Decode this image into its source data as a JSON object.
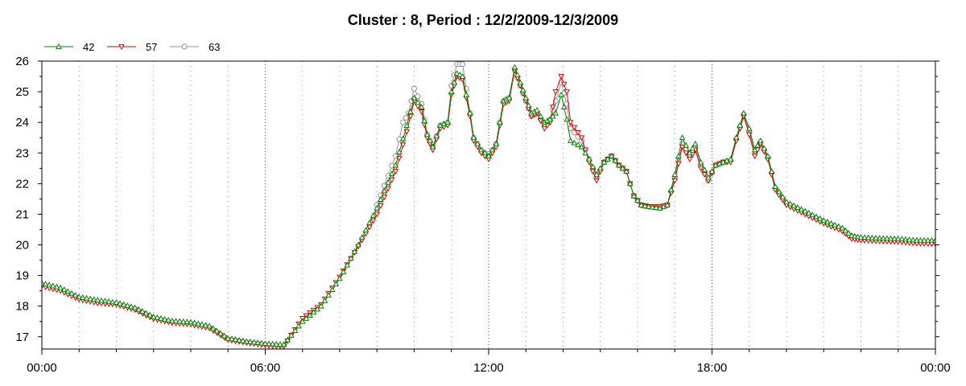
{
  "chart_data": {
    "type": "line",
    "title": "Cluster : 8, Period : 12/2/2009-12/3/2009",
    "xlabel": "",
    "ylabel": "",
    "x_range": [
      "00:00",
      "24:00"
    ],
    "x_tick_labels": [
      "00:00",
      "06:00",
      "12:00",
      "18:00",
      "00:00"
    ],
    "ylim": [
      16.6,
      26
    ],
    "y_tick_labels": [
      "17",
      "18",
      "19",
      "20",
      "21",
      "22",
      "23",
      "24",
      "25",
      "26"
    ],
    "grid": "dotted",
    "legend_position": "top-left",
    "series": [
      {
        "name": "42",
        "color": "#008000",
        "marker": "triangle-up",
        "points": [
          [
            0.0,
            18.75
          ],
          [
            0.5,
            18.6
          ],
          [
            1.0,
            18.3
          ],
          [
            1.5,
            18.2
          ],
          [
            2.0,
            18.12
          ],
          [
            2.5,
            17.95
          ],
          [
            3.0,
            17.65
          ],
          [
            3.5,
            17.52
          ],
          [
            4.0,
            17.48
          ],
          [
            4.5,
            17.35
          ],
          [
            5.0,
            16.95
          ],
          [
            5.5,
            16.85
          ],
          [
            6.0,
            16.78
          ],
          [
            6.5,
            16.75
          ],
          [
            7.0,
            17.5
          ],
          [
            7.5,
            18.0
          ],
          [
            8.0,
            18.9
          ],
          [
            8.5,
            20.0
          ],
          [
            9.0,
            21.2
          ],
          [
            9.5,
            22.6
          ],
          [
            9.8,
            23.9
          ],
          [
            10.0,
            24.8
          ],
          [
            10.2,
            24.5
          ],
          [
            10.35,
            23.6
          ],
          [
            10.5,
            23.2
          ],
          [
            10.7,
            23.9
          ],
          [
            10.9,
            24.0
          ],
          [
            11.0,
            25.0
          ],
          [
            11.15,
            25.6
          ],
          [
            11.3,
            25.5
          ],
          [
            11.5,
            24.3
          ],
          [
            11.6,
            23.5
          ],
          [
            11.8,
            23.1
          ],
          [
            12.0,
            22.9
          ],
          [
            12.2,
            23.3
          ],
          [
            12.4,
            24.7
          ],
          [
            12.55,
            24.8
          ],
          [
            12.7,
            25.8
          ],
          [
            12.85,
            25.3
          ],
          [
            13.0,
            24.8
          ],
          [
            13.15,
            24.3
          ],
          [
            13.3,
            24.4
          ],
          [
            13.5,
            24.0
          ],
          [
            13.65,
            24.1
          ],
          [
            13.8,
            24.3
          ],
          [
            13.95,
            24.9
          ],
          [
            14.1,
            24.1
          ],
          [
            14.2,
            23.4
          ],
          [
            14.5,
            23.2
          ],
          [
            14.7,
            22.8
          ],
          [
            14.9,
            22.3
          ],
          [
            15.1,
            22.7
          ],
          [
            15.3,
            22.9
          ],
          [
            15.5,
            22.6
          ],
          [
            15.7,
            22.4
          ],
          [
            15.9,
            21.6
          ],
          [
            16.1,
            21.3
          ],
          [
            16.3,
            21.25
          ],
          [
            16.6,
            21.2
          ],
          [
            16.8,
            21.3
          ],
          [
            17.0,
            22.3
          ],
          [
            17.2,
            23.5
          ],
          [
            17.4,
            23.0
          ],
          [
            17.55,
            23.3
          ],
          [
            17.7,
            22.7
          ],
          [
            17.9,
            22.2
          ],
          [
            18.1,
            22.6
          ],
          [
            18.3,
            22.7
          ],
          [
            18.5,
            22.8
          ],
          [
            18.65,
            23.5
          ],
          [
            18.85,
            24.3
          ],
          [
            19.0,
            23.8
          ],
          [
            19.15,
            23.1
          ],
          [
            19.3,
            23.4
          ],
          [
            19.5,
            22.9
          ],
          [
            19.7,
            21.9
          ],
          [
            20.0,
            21.4
          ],
          [
            20.5,
            21.1
          ],
          [
            21.0,
            20.8
          ],
          [
            21.5,
            20.55
          ],
          [
            21.75,
            20.3
          ],
          [
            22.0,
            20.25
          ],
          [
            22.5,
            20.22
          ],
          [
            23.0,
            20.2
          ],
          [
            23.5,
            20.15
          ],
          [
            24.0,
            20.15
          ]
        ]
      },
      {
        "name": "57",
        "color": "#e00000",
        "marker": "triangle-down",
        "points": [
          [
            0.0,
            18.65
          ],
          [
            0.5,
            18.5
          ],
          [
            1.0,
            18.22
          ],
          [
            1.5,
            18.1
          ],
          [
            2.0,
            18.05
          ],
          [
            2.5,
            17.88
          ],
          [
            3.0,
            17.58
          ],
          [
            3.5,
            17.45
          ],
          [
            4.0,
            17.4
          ],
          [
            4.5,
            17.28
          ],
          [
            5.0,
            16.9
          ],
          [
            5.5,
            16.8
          ],
          [
            6.0,
            16.72
          ],
          [
            6.5,
            16.68
          ],
          [
            7.0,
            17.6
          ],
          [
            7.5,
            18.05
          ],
          [
            8.0,
            18.95
          ],
          [
            8.5,
            19.95
          ],
          [
            9.0,
            21.0
          ],
          [
            9.5,
            22.4
          ],
          [
            9.8,
            23.7
          ],
          [
            10.0,
            24.7
          ],
          [
            10.2,
            24.35
          ],
          [
            10.35,
            23.5
          ],
          [
            10.5,
            23.1
          ],
          [
            10.7,
            23.8
          ],
          [
            10.9,
            23.9
          ],
          [
            11.0,
            24.9
          ],
          [
            11.15,
            25.5
          ],
          [
            11.3,
            25.4
          ],
          [
            11.5,
            24.2
          ],
          [
            11.6,
            23.4
          ],
          [
            11.8,
            23.0
          ],
          [
            12.0,
            22.8
          ],
          [
            12.2,
            23.2
          ],
          [
            12.4,
            24.6
          ],
          [
            12.55,
            24.7
          ],
          [
            12.7,
            25.7
          ],
          [
            12.85,
            25.2
          ],
          [
            13.0,
            24.7
          ],
          [
            13.15,
            24.2
          ],
          [
            13.3,
            24.3
          ],
          [
            13.5,
            23.8
          ],
          [
            13.65,
            24.0
          ],
          [
            13.8,
            25.0
          ],
          [
            13.95,
            25.5
          ],
          [
            14.1,
            25.0
          ],
          [
            14.2,
            24.0
          ],
          [
            14.5,
            23.5
          ],
          [
            14.7,
            22.7
          ],
          [
            14.9,
            22.1
          ],
          [
            15.1,
            22.7
          ],
          [
            15.3,
            22.9
          ],
          [
            15.5,
            22.6
          ],
          [
            15.7,
            22.4
          ],
          [
            15.9,
            21.6
          ],
          [
            16.1,
            21.3
          ],
          [
            16.3,
            21.25
          ],
          [
            16.6,
            21.25
          ],
          [
            16.8,
            21.3
          ],
          [
            17.0,
            22.1
          ],
          [
            17.2,
            23.2
          ],
          [
            17.4,
            22.8
          ],
          [
            17.55,
            23.1
          ],
          [
            17.7,
            22.5
          ],
          [
            17.9,
            22.1
          ],
          [
            18.1,
            22.6
          ],
          [
            18.3,
            22.7
          ],
          [
            18.5,
            22.7
          ],
          [
            18.65,
            23.4
          ],
          [
            18.85,
            24.2
          ],
          [
            19.0,
            23.6
          ],
          [
            19.15,
            22.9
          ],
          [
            19.3,
            23.3
          ],
          [
            19.5,
            22.8
          ],
          [
            19.7,
            21.8
          ],
          [
            20.0,
            21.3
          ],
          [
            20.5,
            21.0
          ],
          [
            21.0,
            20.7
          ],
          [
            21.5,
            20.45
          ],
          [
            21.75,
            20.2
          ],
          [
            22.0,
            20.15
          ],
          [
            22.5,
            20.12
          ],
          [
            23.0,
            20.1
          ],
          [
            23.5,
            20.05
          ],
          [
            24.0,
            20.03
          ]
        ]
      },
      {
        "name": "63",
        "color": "#909090",
        "marker": "circle",
        "points": [
          [
            9.0,
            21.3
          ],
          [
            9.5,
            22.9
          ],
          [
            9.7,
            24.0
          ],
          [
            9.85,
            24.3
          ],
          [
            10.0,
            25.1
          ],
          [
            10.2,
            24.6
          ],
          [
            10.35,
            23.6
          ],
          [
            10.5,
            23.2
          ],
          [
            10.7,
            23.9
          ],
          [
            10.9,
            24.0
          ],
          [
            11.0,
            25.2
          ],
          [
            11.15,
            25.9
          ],
          [
            11.3,
            25.9
          ],
          [
            11.5,
            24.3
          ],
          [
            11.6,
            23.5
          ],
          [
            11.8,
            23.1
          ],
          [
            12.0,
            22.9
          ],
          [
            12.2,
            23.3
          ],
          [
            12.4,
            24.7
          ],
          [
            12.55,
            24.8
          ],
          [
            12.7,
            25.7
          ],
          [
            12.85,
            25.2
          ],
          [
            13.0,
            24.7
          ],
          [
            13.15,
            24.2
          ],
          [
            13.3,
            24.3
          ],
          [
            13.5,
            23.9
          ],
          [
            13.65,
            24.1
          ],
          [
            13.8,
            24.7
          ],
          [
            13.95,
            25.3
          ],
          [
            14.1,
            24.6
          ],
          [
            14.2,
            23.8
          ],
          [
            14.5,
            23.4
          ],
          [
            14.7,
            22.8
          ],
          [
            14.9,
            22.2
          ],
          [
            15.1,
            22.7
          ],
          [
            15.3,
            22.9
          ],
          [
            15.5,
            22.6
          ],
          [
            15.7,
            22.4
          ],
          [
            15.9,
            21.6
          ],
          [
            16.1,
            21.3
          ],
          [
            16.3,
            21.25
          ],
          [
            16.6,
            21.2
          ],
          [
            16.8,
            21.3
          ],
          [
            17.0,
            22.2
          ],
          [
            17.2,
            23.3
          ],
          [
            17.4,
            22.9
          ],
          [
            17.55,
            23.2
          ],
          [
            17.7,
            22.6
          ],
          [
            17.9,
            22.1
          ],
          [
            18.1,
            22.6
          ],
          [
            18.3,
            22.7
          ],
          [
            18.5,
            22.75
          ],
          [
            18.65,
            23.45
          ],
          [
            18.85,
            24.25
          ],
          [
            19.0,
            23.7
          ],
          [
            19.15,
            23.0
          ],
          [
            19.3,
            23.35
          ],
          [
            19.5,
            22.85
          ],
          [
            19.7,
            21.85
          ],
          [
            20.0,
            21.35
          ],
          [
            20.5,
            21.05
          ],
          [
            21.0,
            20.75
          ],
          [
            21.5,
            20.5
          ],
          [
            21.75,
            20.25
          ],
          [
            22.0,
            20.2
          ]
        ]
      }
    ]
  }
}
